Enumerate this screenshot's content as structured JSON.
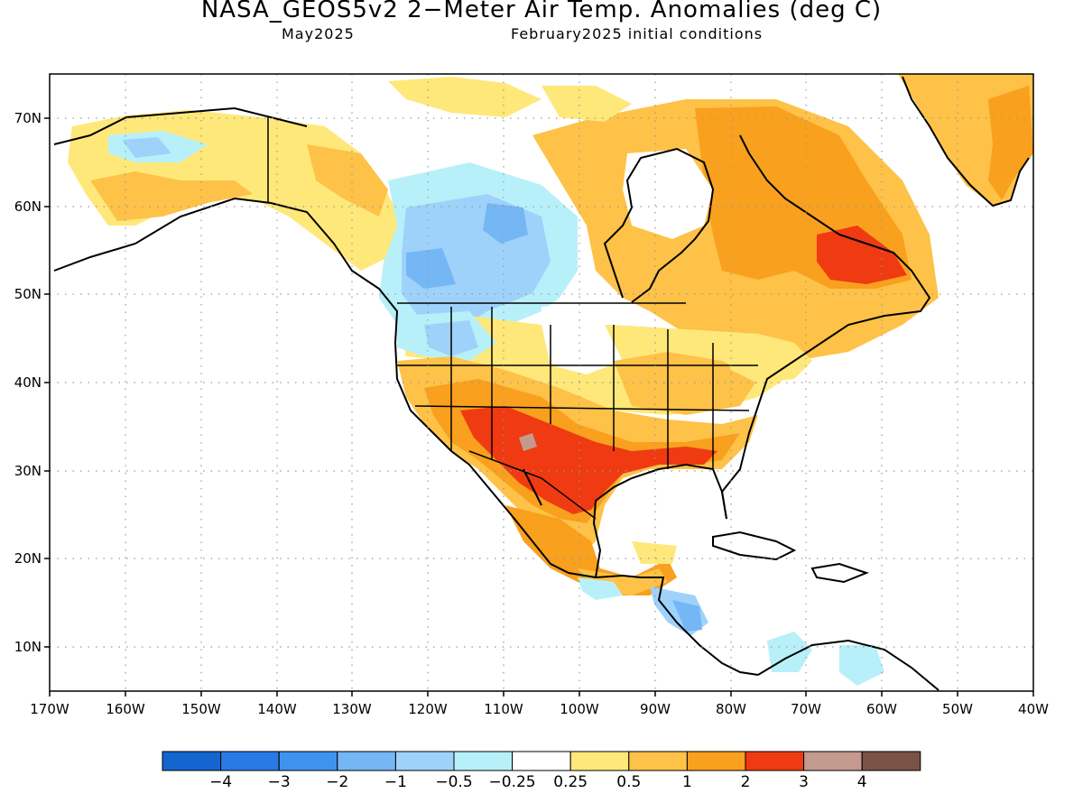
{
  "title": "NASA_GEOS5v2 2−Meter Air Temp. Anomalies (deg C)",
  "subtitle_left": "May2025",
  "subtitle_right": "February2025 initial conditions",
  "lat_ticks": [
    "70N",
    "60N",
    "50N",
    "40N",
    "30N",
    "20N",
    "10N"
  ],
  "lon_ticks": [
    "170W",
    "160W",
    "150W",
    "140W",
    "130W",
    "120W",
    "110W",
    "100W",
    "90W",
    "80W",
    "70W",
    "60W",
    "50W",
    "40W"
  ],
  "colorbar": {
    "colors": [
      "#1565d0",
      "#2a7ae6",
      "#3f93f0",
      "#75b6f5",
      "#9fd2fa",
      "#b8f0fa",
      "#ffffff",
      "#ffe87a",
      "#fdc247",
      "#f9a01e",
      "#ef3a12",
      "#c49a8e",
      "#7a5246"
    ],
    "labels": [
      "−4",
      "−3",
      "−2",
      "−1",
      "−0.5",
      "−0.25",
      "0.25",
      "0.5",
      "1",
      "2",
      "3",
      "4"
    ]
  }
}
